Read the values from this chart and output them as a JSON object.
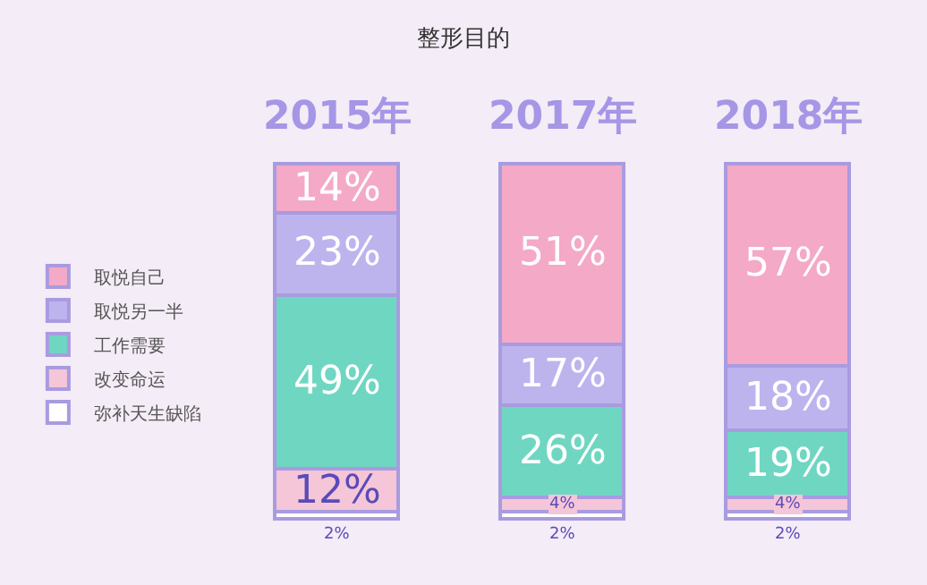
{
  "chart_data": {
    "type": "bar",
    "title": "整形目的",
    "stacked": true,
    "legend": "left",
    "categories": [
      "2015年",
      "2017年",
      "2018年"
    ],
    "series": [
      {
        "name": "弥补天生缺陷",
        "color": "#ffffff",
        "values": [
          2,
          2,
          2
        ],
        "value_labels": [
          "2%",
          "2%",
          "2%"
        ]
      },
      {
        "name": "改变命运",
        "color": "#f5c6d8",
        "values": [
          12,
          4,
          4
        ],
        "value_labels": [
          "12%",
          "4%",
          "4%"
        ]
      },
      {
        "name": "工作需要",
        "color": "#6fd6c2",
        "values": [
          49,
          26,
          19
        ],
        "value_labels": [
          "49%",
          "26%",
          "19%"
        ]
      },
      {
        "name": "取悦另一半",
        "color": "#bdb4ee",
        "values": [
          23,
          17,
          18
        ],
        "value_labels": [
          "23%",
          "17%",
          "18%"
        ]
      },
      {
        "name": "取悦自己",
        "color": "#f4a9c6",
        "values": [
          14,
          51,
          57
        ],
        "value_labels": [
          "14%",
          "51%",
          "57%"
        ]
      }
    ]
  }
}
